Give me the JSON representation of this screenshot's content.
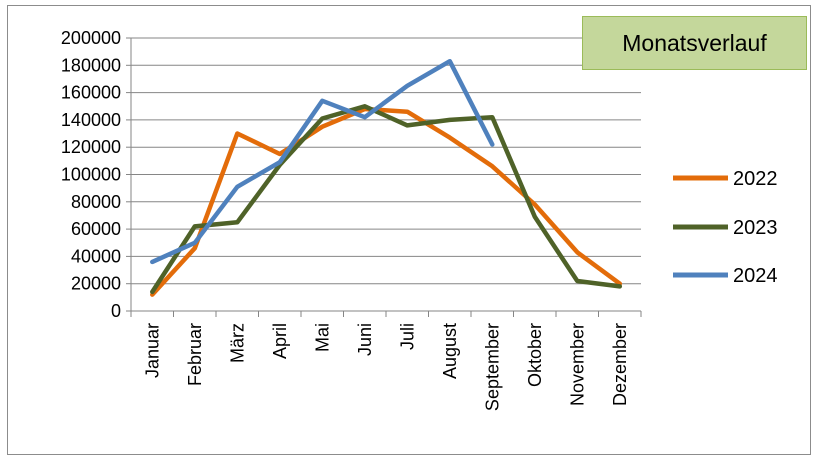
{
  "chart_data": {
    "type": "line",
    "title": "Monatsverlauf",
    "xlabel": "",
    "ylabel": "",
    "categories": [
      "Januar",
      "Februar",
      "März",
      "April",
      "Mai",
      "Juni",
      "Juli",
      "August",
      "September",
      "Oktober",
      "November",
      "Dezember"
    ],
    "ylim": [
      0,
      200000
    ],
    "yticks": [
      0,
      20000,
      40000,
      60000,
      80000,
      100000,
      120000,
      140000,
      160000,
      180000,
      200000
    ],
    "grid": true,
    "legend_position": "right",
    "series": [
      {
        "name": "2022",
        "color": "#e36c0a",
        "values": [
          12000,
          46000,
          130000,
          115000,
          135000,
          148000,
          146000,
          127000,
          106000,
          78000,
          43000,
          20000
        ]
      },
      {
        "name": "2023",
        "color": "#4f6228",
        "values": [
          14000,
          62000,
          65000,
          107000,
          141000,
          150000,
          136000,
          140000,
          142000,
          69000,
          22000,
          18000
        ]
      },
      {
        "name": "2024",
        "color": "#4f81bd",
        "values": [
          36000,
          50000,
          91000,
          109000,
          154000,
          142000,
          165000,
          183000,
          122000,
          null,
          null,
          null
        ]
      }
    ]
  }
}
